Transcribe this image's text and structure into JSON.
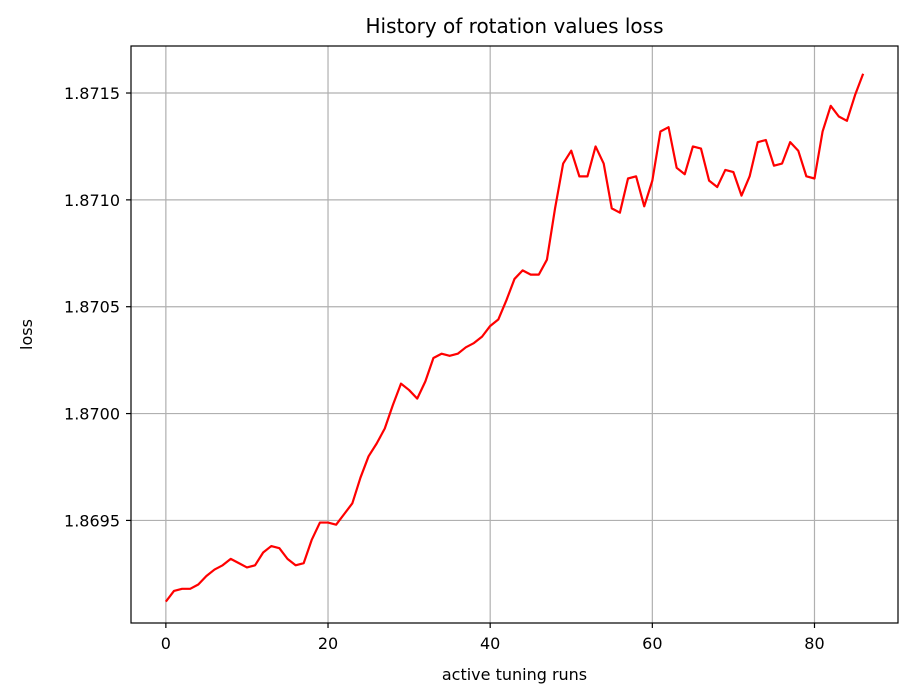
{
  "chart_data": {
    "type": "line",
    "title": "History of rotation values loss",
    "xlabel": "active tuning runs",
    "ylabel": "loss",
    "xlim": [
      -4.3,
      90.3
    ],
    "ylim": [
      1.86902,
      1.87172
    ],
    "grid": true,
    "x_ticks": [
      0,
      20,
      40,
      60,
      80
    ],
    "y_ticks": [
      1.8695,
      1.87,
      1.8705,
      1.871,
      1.8715
    ],
    "x_tick_labels": [
      "0",
      "20",
      "40",
      "60",
      "80"
    ],
    "y_tick_labels": [
      "1.8695",
      "1.8700",
      "1.8705",
      "1.8710",
      "1.8715"
    ],
    "series": [
      {
        "color": "#ff0000",
        "x": [
          0,
          1,
          2,
          3,
          4,
          5,
          6,
          7,
          8,
          9,
          10,
          11,
          12,
          13,
          14,
          15,
          16,
          17,
          18,
          19,
          20,
          21,
          22,
          23,
          24,
          25,
          26,
          27,
          28,
          29,
          30,
          31,
          32,
          33,
          34,
          35,
          36,
          37,
          38,
          39,
          40,
          41,
          42,
          43,
          44,
          45,
          46,
          47,
          48,
          49,
          50,
          51,
          52,
          53,
          54,
          55,
          56,
          57,
          58,
          59,
          60,
          61,
          62,
          63,
          64,
          65,
          66,
          67,
          68,
          69,
          70,
          71,
          72,
          73,
          74,
          75,
          76,
          77,
          78,
          79,
          80,
          81,
          82,
          83,
          84,
          85,
          86
        ],
        "y": [
          1.86912,
          1.86917,
          1.86918,
          1.86918,
          1.8692,
          1.86924,
          1.86927,
          1.86929,
          1.86932,
          1.8693,
          1.86928,
          1.86929,
          1.86935,
          1.86938,
          1.86937,
          1.86932,
          1.86929,
          1.8693,
          1.86941,
          1.86949,
          1.86949,
          1.86948,
          1.86953,
          1.86958,
          1.8697,
          1.8698,
          1.86986,
          1.86993,
          1.87004,
          1.87014,
          1.87011,
          1.87007,
          1.87015,
          1.87026,
          1.87028,
          1.87027,
          1.87028,
          1.87031,
          1.87033,
          1.87036,
          1.87041,
          1.87044,
          1.87053,
          1.87063,
          1.87067,
          1.87065,
          1.87065,
          1.87072,
          1.87096,
          1.87117,
          1.87123,
          1.87111,
          1.87111,
          1.87125,
          1.87117,
          1.87096,
          1.87094,
          1.8711,
          1.87111,
          1.87097,
          1.87109,
          1.87132,
          1.87134,
          1.87115,
          1.87112,
          1.87125,
          1.87124,
          1.87109,
          1.87106,
          1.87114,
          1.87113,
          1.87102,
          1.87111,
          1.87127,
          1.87128,
          1.87116,
          1.87117,
          1.87127,
          1.87123,
          1.87111,
          1.8711,
          1.87132,
          1.87144,
          1.87139,
          1.87137,
          1.87149,
          1.87159
        ]
      }
    ]
  }
}
